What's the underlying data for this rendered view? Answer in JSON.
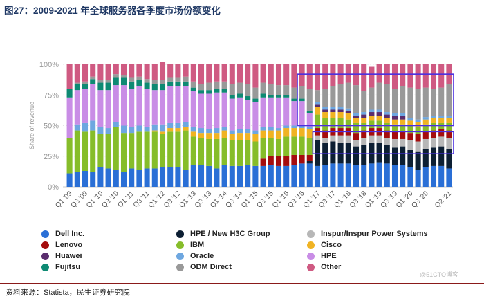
{
  "title": "图27：2009-2021 年全球服务器各季度市场份额变化",
  "source": "资料来源：Statista，民生证券研究院",
  "watermark": "@51CTO博客",
  "chart_data": {
    "type": "bar",
    "stacked": true,
    "title": "",
    "xlabel": "",
    "ylabel": "Share of revenue",
    "ylim": [
      0,
      100
    ],
    "y_ticks": [
      "0%",
      "25%",
      "50%",
      "75%",
      "100%"
    ],
    "categories": [
      "Q1 '09",
      "Q2 '09",
      "Q3 '09",
      "Q4 '09",
      "Q1 '10",
      "Q2 '10",
      "Q3 '10",
      "Q4 '10",
      "Q1 '11",
      "Q2 '11",
      "Q3 '11",
      "Q4 '11",
      "Q1 '12",
      "Q2 '12",
      "Q3 '12",
      "Q4 '12",
      "Q1 '13",
      "Q2 '13",
      "Q3 '13",
      "Q4 '13",
      "Q1 '14",
      "Q2 '14",
      "Q3 '14",
      "Q4 '14",
      "Q1 '15",
      "Q2 '15",
      "Q3 '15",
      "Q4 '15",
      "Q1 '16",
      "Q2 '16",
      "Q3 '16",
      "Q4 '16",
      "Q1 '17",
      "Q2 '17",
      "Q3 '17",
      "Q4 '17",
      "Q1 '18",
      "Q2 '18",
      "Q3 '18",
      "Q4 '18",
      "Q1 '19",
      "Q2 '19",
      "Q3 '19",
      "Q4 '19",
      "Q1 '20",
      "Q2 '20",
      "Q3 '20",
      "Q4 '20",
      "Q1 '21",
      "Q2 '21"
    ],
    "x_tick_labels": [
      "Q1 '09",
      "Q3 '09",
      "Q1 '10",
      "Q3 '10",
      "Q1 '11",
      "Q3 '11",
      "Q1 '12",
      "Q3 '12",
      "Q1 '13",
      "Q3 '13",
      "Q1 '14",
      "Q3 '14",
      "Q1 '15",
      "Q3 '15",
      "Q1 '16",
      "Q3 '16",
      "Q1 '17",
      "Q3 '17",
      "Q1 '18",
      "Q3 '18",
      "Q1 '19",
      "Q3 '19",
      "Q1 '20",
      "Q3 '20",
      "Q2 '21"
    ],
    "series": [
      {
        "name": "Dell Inc.",
        "color": "#2a6fd6",
        "values": [
          11,
          12,
          13,
          12,
          16,
          15,
          14,
          12,
          15,
          14,
          15,
          15,
          16,
          16,
          16,
          14,
          18,
          18,
          17,
          15,
          18,
          17,
          17,
          18,
          17,
          17,
          18,
          17,
          17,
          18,
          19,
          19,
          17,
          18,
          19,
          19,
          19,
          18,
          18,
          19,
          20,
          19,
          18,
          18,
          16,
          14,
          16,
          17,
          17,
          15
        ]
      },
      {
        "name": "HPE / New H3C Group",
        "color": "#0d1f33",
        "values": [
          0,
          0,
          0,
          0,
          0,
          0,
          0,
          0,
          0,
          0,
          0,
          0,
          0,
          0,
          0,
          0,
          0,
          0,
          0,
          0,
          0,
          0,
          0,
          0,
          0,
          0,
          0,
          0,
          0,
          0,
          0,
          2,
          21,
          18,
          18,
          17,
          17,
          15,
          16,
          17,
          16,
          15,
          14,
          15,
          14,
          15,
          15,
          15,
          16,
          16
        ]
      },
      {
        "name": "Inspur/Inspur Power Systems",
        "color": "#b7b7b7",
        "values": [
          0,
          0,
          0,
          0,
          0,
          0,
          0,
          0,
          0,
          0,
          0,
          0,
          0,
          0,
          0,
          0,
          0,
          0,
          0,
          0,
          0,
          0,
          0,
          0,
          0,
          0,
          0,
          0,
          0,
          0,
          0,
          0,
          4,
          4,
          5,
          6,
          6,
          5,
          6,
          6,
          6,
          6,
          7,
          6,
          8,
          8,
          8,
          8,
          8,
          9
        ]
      },
      {
        "name": "Lenovo",
        "color": "#a50d0d",
        "values": [
          0,
          0,
          0,
          0,
          0,
          0,
          0,
          0,
          0,
          0,
          0,
          0,
          0,
          0,
          0,
          0,
          0,
          0,
          0,
          0,
          0,
          0,
          0,
          0,
          0,
          6,
          7,
          8,
          8,
          8,
          7,
          5,
          6,
          6,
          6,
          6,
          6,
          6,
          6,
          6,
          6,
          6,
          6,
          6,
          6,
          6,
          6,
          6,
          6,
          6
        ]
      },
      {
        "name": "IBM",
        "color": "#86bd2a",
        "values": [
          29,
          34,
          32,
          34,
          27,
          28,
          35,
          32,
          29,
          31,
          30,
          30,
          27,
          29,
          29,
          32,
          23,
          22,
          22,
          24,
          22,
          21,
          21,
          20,
          20,
          17,
          15,
          14,
          16,
          15,
          15,
          14,
          11,
          10,
          8,
          8,
          7,
          8,
          6,
          6,
          6,
          6,
          6,
          6,
          6,
          6,
          6,
          6,
          5,
          6
        ]
      },
      {
        "name": "Cisco",
        "color": "#f0b323",
        "values": [
          0,
          0,
          0,
          0,
          0,
          0,
          0,
          0,
          0,
          0,
          0,
          1,
          2,
          3,
          3,
          3,
          4,
          4,
          5,
          5,
          6,
          5,
          6,
          6,
          6,
          6,
          6,
          7,
          7,
          7,
          7,
          7,
          6,
          5,
          5,
          5,
          5,
          4,
          4,
          4,
          4,
          4,
          4,
          4,
          4,
          4,
          4,
          4,
          4,
          4
        ]
      },
      {
        "name": "Huawei",
        "color": "#5a2d6e",
        "values": [
          0,
          0,
          0,
          0,
          0,
          0,
          0,
          0,
          0,
          0,
          0,
          0,
          0,
          0,
          0,
          0,
          0,
          0,
          0,
          0,
          0,
          0,
          0,
          0,
          0,
          0,
          0,
          0,
          0,
          0,
          0,
          0,
          2,
          2,
          2,
          2,
          2,
          2,
          3,
          3,
          3,
          3,
          3,
          3,
          0,
          0,
          0,
          0,
          0,
          0
        ]
      },
      {
        "name": "Oracle",
        "color": "#6ea7e0",
        "values": [
          0,
          5,
          7,
          8,
          6,
          5,
          4,
          6,
          5,
          5,
          4,
          5,
          6,
          4,
          4,
          4,
          4,
          4,
          3,
          4,
          3,
          3,
          3,
          3,
          3,
          3,
          3,
          2,
          2,
          2,
          2,
          2,
          2,
          2,
          2,
          2,
          2,
          2,
          2,
          2,
          2,
          2,
          2,
          2,
          2,
          2,
          2,
          2,
          2,
          2
        ]
      },
      {
        "name": "HPE",
        "color": "#c98de6",
        "values": [
          33,
          28,
          28,
          30,
          30,
          31,
          30,
          33,
          31,
          32,
          31,
          28,
          28,
          30,
          30,
          29,
          29,
          28,
          29,
          29,
          28,
          26,
          26,
          24,
          23,
          24,
          24,
          25,
          23,
          20,
          20,
          11,
          0,
          0,
          0,
          0,
          0,
          0,
          0,
          0,
          0,
          0,
          0,
          0,
          0,
          0,
          0,
          0,
          0,
          0
        ]
      },
      {
        "name": "Fujitsu",
        "color": "#0e8a73",
        "values": [
          7,
          5,
          4,
          4,
          6,
          6,
          6,
          6,
          6,
          5,
          5,
          5,
          5,
          4,
          4,
          4,
          3,
          3,
          3,
          3,
          3,
          3,
          3,
          3,
          3,
          3,
          2,
          2,
          2,
          2,
          2,
          2,
          0,
          0,
          0,
          0,
          0,
          0,
          0,
          0,
          0,
          0,
          0,
          0,
          0,
          0,
          0,
          0,
          0,
          0
        ]
      },
      {
        "name": "ODM Direct",
        "color": "#999999",
        "values": [
          0,
          1,
          2,
          2,
          2,
          2,
          3,
          2,
          3,
          3,
          3,
          3,
          3,
          3,
          3,
          4,
          5,
          5,
          6,
          6,
          6,
          9,
          9,
          10,
          9,
          9,
          9,
          8,
          8,
          9,
          10,
          18,
          10,
          15,
          17,
          19,
          21,
          23,
          17,
          18,
          22,
          23,
          20,
          22,
          25,
          25,
          24,
          22,
          23,
          26
        ]
      },
      {
        "name": "Other",
        "color": "#cf5a82",
        "values": [
          20,
          15,
          14,
          10,
          13,
          13,
          8,
          9,
          11,
          10,
          12,
          13,
          15,
          11,
          11,
          10,
          14,
          16,
          15,
          14,
          14,
          16,
          15,
          16,
          19,
          15,
          16,
          17,
          17,
          19,
          18,
          20,
          21,
          20,
          18,
          16,
          15,
          17,
          22,
          17,
          15,
          16,
          20,
          18,
          19,
          20,
          19,
          20,
          19,
          16
        ]
      }
    ],
    "legend_position": "bottom",
    "highlight_boxes": [
      {
        "from_category": "Q3 '16",
        "to_category": "Q2 '21",
        "y_from": 50,
        "y_to": 92
      },
      {
        "from_category": "Q1 '17",
        "to_category": "Q2 '21",
        "y_from": 27,
        "y_to": 45
      }
    ]
  }
}
